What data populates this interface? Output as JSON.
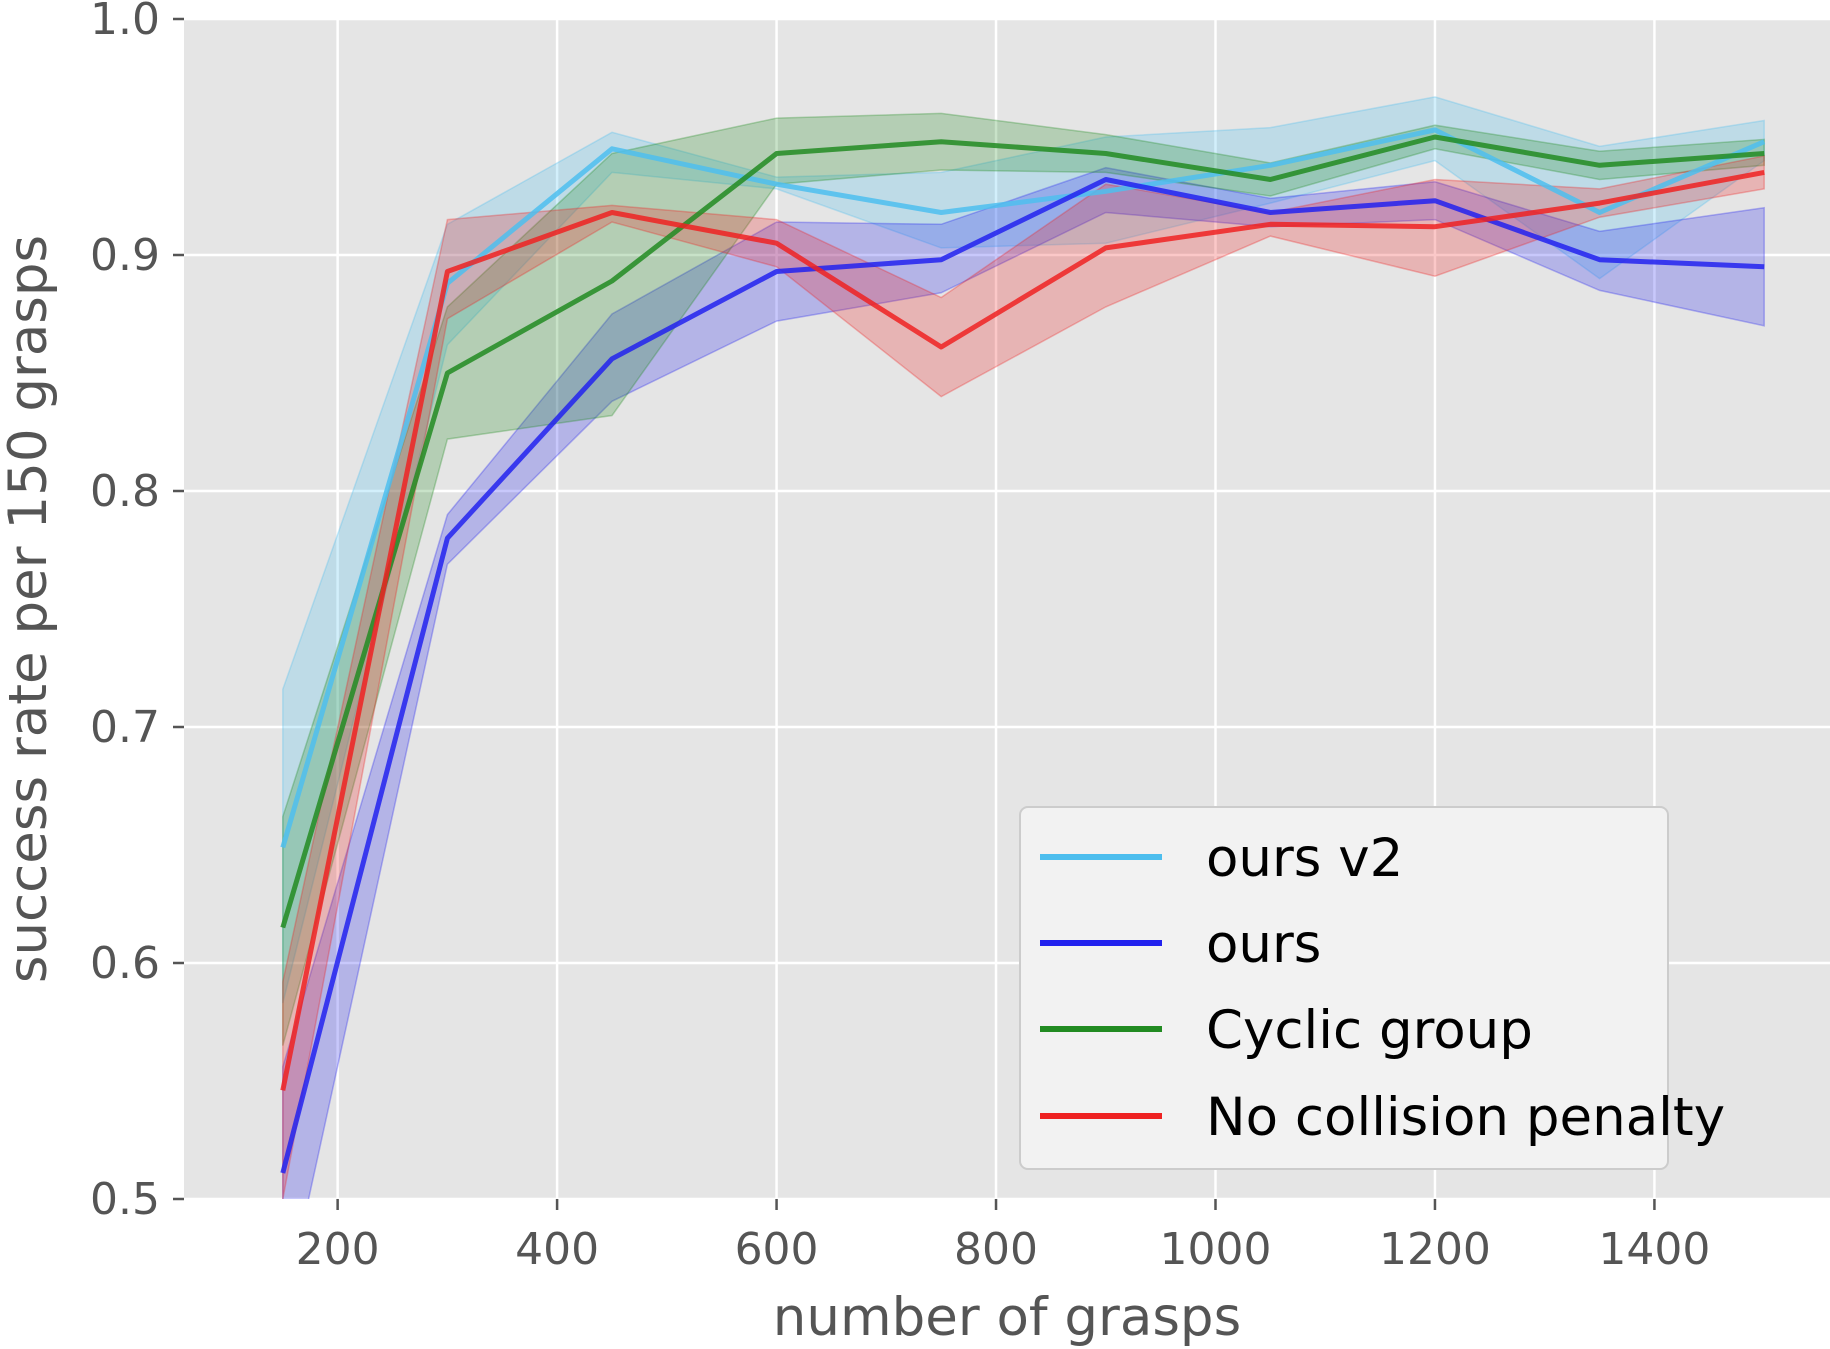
{
  "chart_data": {
    "type": "line",
    "title": "",
    "xlabel": "number of grasps",
    "ylabel": "success rate per 150 grasps",
    "xlim": [
      60,
      1560
    ],
    "ylim": [
      0.5,
      1.0
    ],
    "xticks": [
      200,
      400,
      600,
      800,
      1000,
      1200,
      1400
    ],
    "xtick_labels": [
      "200",
      "400",
      "600",
      "800",
      "1000",
      "1200",
      "1400"
    ],
    "yticks": [
      0.5,
      0.6,
      0.7,
      0.8,
      0.9,
      1.0
    ],
    "ytick_labels": [
      "0.5",
      "0.6",
      "0.7",
      "0.8",
      "0.9",
      "1.0"
    ],
    "grid": true,
    "legend_position": "lower right",
    "x": [
      150,
      300,
      450,
      600,
      750,
      900,
      1050,
      1200,
      1350,
      1500
    ],
    "series": [
      {
        "name": "ours v2",
        "color": "#4dbeee",
        "values": [
          0.649,
          0.888,
          0.945,
          0.93,
          0.918,
          0.927,
          0.938,
          0.953,
          0.918,
          0.948
        ],
        "lower": [
          0.583,
          0.862,
          0.935,
          0.928,
          0.903,
          0.905,
          0.922,
          0.94,
          0.89,
          0.94
        ],
        "upper": [
          0.716,
          0.913,
          0.952,
          0.933,
          0.935,
          0.95,
          0.954,
          0.967,
          0.946,
          0.957
        ]
      },
      {
        "name": "ours",
        "color": "#2222ee",
        "values": [
          0.511,
          0.78,
          0.856,
          0.893,
          0.898,
          0.932,
          0.918,
          0.923,
          0.898,
          0.895
        ],
        "lower": [
          0.45,
          0.769,
          0.838,
          0.872,
          0.884,
          0.918,
          0.912,
          0.915,
          0.885,
          0.87
        ],
        "upper": [
          0.556,
          0.79,
          0.875,
          0.914,
          0.913,
          0.937,
          0.924,
          0.931,
          0.91,
          0.92
        ]
      },
      {
        "name": "Cyclic group",
        "color": "#228b22",
        "values": [
          0.615,
          0.85,
          0.889,
          0.943,
          0.948,
          0.943,
          0.932,
          0.95,
          0.938,
          0.943
        ],
        "lower": [
          0.565,
          0.822,
          0.832,
          0.93,
          0.936,
          0.935,
          0.925,
          0.945,
          0.932,
          0.938
        ],
        "upper": [
          0.662,
          0.878,
          0.943,
          0.958,
          0.96,
          0.951,
          0.939,
          0.955,
          0.944,
          0.949
        ]
      },
      {
        "name": "No collision penalty",
        "color": "#ee2222",
        "values": [
          0.546,
          0.893,
          0.918,
          0.905,
          0.861,
          0.903,
          0.913,
          0.912,
          0.922,
          0.935
        ],
        "lower": [
          0.5,
          0.873,
          0.914,
          0.895,
          0.84,
          0.878,
          0.908,
          0.891,
          0.916,
          0.928
        ],
        "upper": [
          0.592,
          0.915,
          0.921,
          0.915,
          0.882,
          0.93,
          0.918,
          0.932,
          0.928,
          0.942
        ]
      }
    ]
  }
}
